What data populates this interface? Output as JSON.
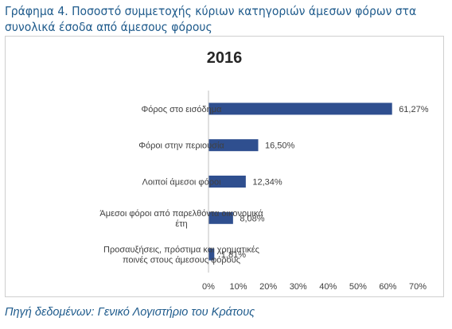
{
  "figure": {
    "caption": "Γράφημα 4. Ποσοστό συμμετοχής κύριων κατηγοριών άμεσων φόρων στα συνολικά έσοδα από άμεσους φόρους",
    "source": "Πηγή δεδομένων: Γενικό Λογιστήριο του Κράτους"
  },
  "chart_data": {
    "type": "bar",
    "orientation": "horizontal",
    "title": "2016",
    "categories": [
      [
        "Φόρος στο εισόδημα"
      ],
      [
        "Φόροι στην περιουσία"
      ],
      [
        "Λοιποί άμεσοι φόροι"
      ],
      [
        "Άμεσοι φόροι από παρελθόντα οικονομικά",
        "έτη"
      ],
      [
        "Προσαυξήσεις, πρόστιμα και χρηματικές",
        "ποινές στους άμεσους φόρους"
      ]
    ],
    "values": [
      61.27,
      16.5,
      12.34,
      8.08,
      1.81
    ],
    "value_labels": [
      "61,27%",
      "16,50%",
      "12,34%",
      "8,08%",
      "1,81%"
    ],
    "xlim": [
      0,
      70
    ],
    "x_ticks": [
      "0%",
      "10%",
      "20%",
      "30%",
      "40%",
      "50%",
      "60%",
      "70%"
    ],
    "grid": false,
    "legend": "none",
    "bar_color": "#2f4f8f"
  }
}
